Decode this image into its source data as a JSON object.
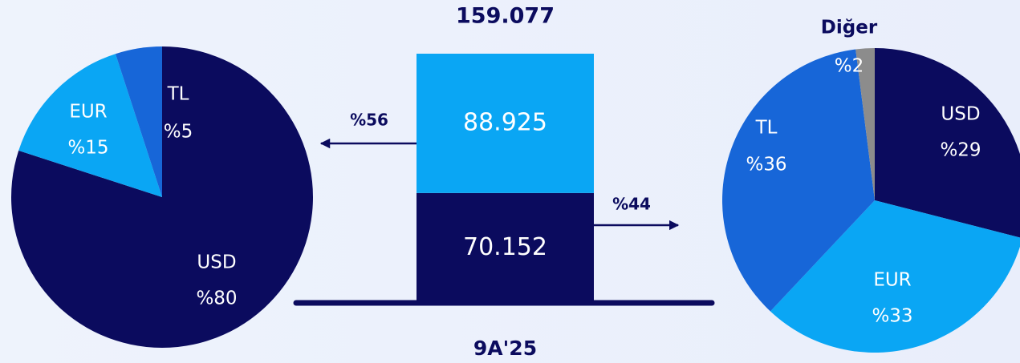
{
  "chart_data": [
    {
      "type": "pie",
      "categories": [
        "USD",
        "EUR",
        "TL"
      ],
      "values": [
        80,
        15,
        5
      ],
      "value_labels": [
        "%80",
        "%15",
        "%5"
      ],
      "colors": [
        "#0b0b5e",
        "#0aa6f4",
        "#1766d8"
      ]
    },
    {
      "type": "stacked_bar",
      "categories": [
        "9A'25"
      ],
      "series": [
        {
          "color": "#0b0b5e",
          "values": [
            70152
          ],
          "value_labels": [
            "70.152"
          ]
        },
        {
          "color": "#0aa6f4",
          "values": [
            88925
          ],
          "value_labels": [
            "88.925"
          ]
        }
      ],
      "total": {
        "value": 159077,
        "label": "159.077"
      },
      "annotations": [
        "%56",
        "%44"
      ]
    },
    {
      "type": "pie",
      "categories": [
        "USD",
        "EUR",
        "TL",
        "Diğer"
      ],
      "values": [
        29,
        33,
        36,
        2
      ],
      "value_labels": [
        "%29",
        "%33",
        "%36",
        "%2"
      ],
      "colors": [
        "#0b0b5e",
        "#0aa6f4",
        "#1766d8",
        "#8c8c8c"
      ]
    }
  ]
}
